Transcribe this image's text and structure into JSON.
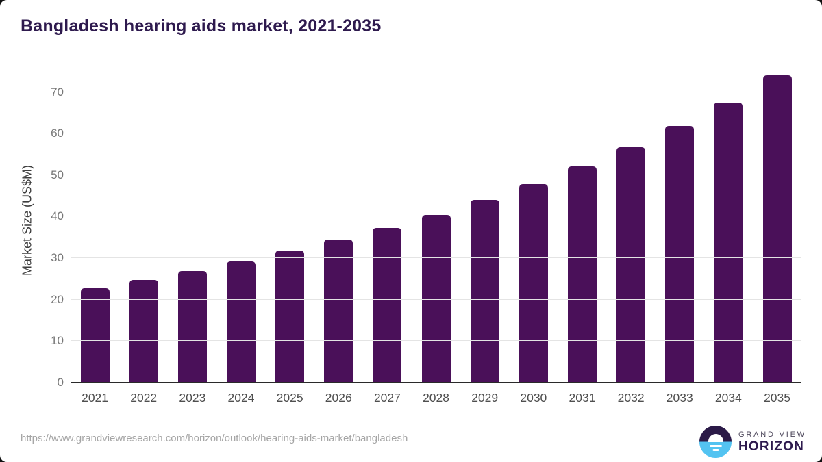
{
  "chart_data": {
    "type": "bar",
    "title": "Bangladesh hearing aids market, 2021-2035",
    "ylabel": "Market Size (US$M)",
    "xlabel": "",
    "categories": [
      "2021",
      "2022",
      "2023",
      "2024",
      "2025",
      "2026",
      "2027",
      "2028",
      "2029",
      "2030",
      "2031",
      "2032",
      "2033",
      "2034",
      "2035"
    ],
    "values": [
      22.7,
      24.7,
      26.9,
      29.2,
      31.8,
      34.5,
      37.3,
      40.4,
      44.1,
      47.9,
      52.2,
      56.8,
      61.9,
      67.5,
      74.0
    ],
    "yticks": [
      0,
      10,
      20,
      30,
      40,
      50,
      60,
      70
    ],
    "ylim": [
      0,
      75.7
    ],
    "grid": true,
    "legend_position": "none",
    "bar_color": "#4a1059"
  },
  "colors": {
    "bar": "#4a1059",
    "title_text": "#2e1a4e",
    "axis_line": "#2a2a2a",
    "gridline": "#e4e4e4",
    "tick_text": "#777777",
    "logo_dark": "#2b1a47",
    "logo_blue": "#53c3f1"
  },
  "footer": {
    "source_url": "https://www.grandviewresearch.com/horizon/outlook/hearing-aids-market/bangladesh",
    "logo_line1": "GRAND VIEW",
    "logo_line2": "HORIZON"
  }
}
